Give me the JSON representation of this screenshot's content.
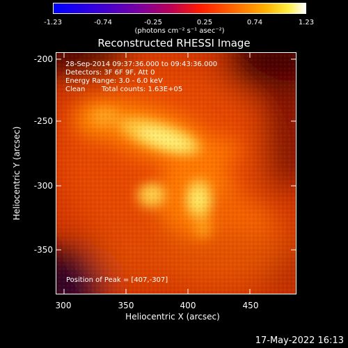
{
  "colorbar": {
    "ticks": [
      "-1.23",
      "-0.74",
      "-0.25",
      "0.25",
      "0.74",
      "1.23"
    ],
    "unit_label": "(photons cm⁻² s⁻¹ asec⁻²)"
  },
  "title": "Reconstructed RHESSI Image",
  "info": {
    "time_range": "28-Sep-2014 09:37:36.000 to 09:43:36.000",
    "detectors": "Detectors: 3F 6F 9F, Att 0",
    "energy_range": "Energy Range: 3.0 - 6.0 keV",
    "method": "Clean",
    "counts": "Total counts: 1.63E+05"
  },
  "peak_label": "Position of Peak = [407,-307]",
  "axes": {
    "xlabel": "Heliocentric X (arcsec)",
    "ylabel": "Heliocentric Y (arcsec)",
    "xticks": [
      "300",
      "350",
      "400",
      "450"
    ],
    "yticks": [
      "-200",
      "-250",
      "-300",
      "-350"
    ]
  },
  "footer_date": "17-May-2022 16:13"
}
